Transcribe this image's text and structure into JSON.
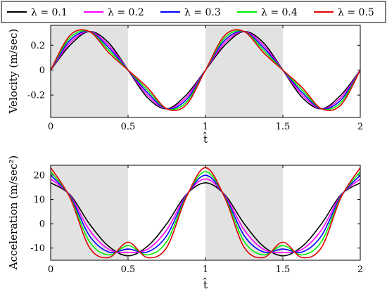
{
  "chart_data": [
    {
      "type": "line",
      "ylabel": "Velocity  (m/sec)",
      "xlabel": "t̂",
      "xlim": [
        0,
        2
      ],
      "ylim": [
        -0.38,
        0.36
      ],
      "xticks": [
        0,
        0.5,
        1,
        1.5,
        2
      ],
      "xtick_labels": [
        "0",
        "0.5",
        "1",
        "1.5",
        "2"
      ],
      "yticks": [
        -0.2,
        0,
        0.2
      ],
      "ytick_labels": [
        "-0.2",
        "0",
        "0.2"
      ],
      "shaded_regions": [
        [
          0,
          0.5
        ],
        [
          1,
          1.5
        ]
      ],
      "grid": false,
      "series": [
        {
          "name": "λ = 0.1",
          "color": "#000000",
          "x": [
            0,
            0.125,
            0.25,
            0.375,
            0.5,
            0.625,
            0.75,
            0.875,
            1,
            1.125,
            1.25,
            1.375,
            1.5,
            1.625,
            1.75,
            1.875,
            2
          ],
          "y": [
            0,
            0.2,
            0.31,
            0.22,
            0,
            -0.22,
            -0.31,
            -0.2,
            0,
            0.2,
            0.31,
            0.22,
            0,
            -0.22,
            -0.31,
            -0.2,
            0
          ]
        },
        {
          "name": "λ = 0.2",
          "color": "#ff00ff",
          "x": [
            0,
            0.125,
            0.25,
            0.375,
            0.5,
            0.625,
            0.75,
            0.875,
            1,
            1.125,
            1.25,
            1.375,
            1.5,
            1.625,
            1.75,
            1.875,
            2
          ],
          "y": [
            0,
            0.22,
            0.31,
            0.2,
            0,
            -0.2,
            -0.31,
            -0.22,
            0,
            0.22,
            0.31,
            0.2,
            0,
            -0.2,
            -0.31,
            -0.22,
            0
          ]
        },
        {
          "name": "λ = 0.3",
          "color": "#0000ff",
          "x": [
            0,
            0.125,
            0.25,
            0.375,
            0.5,
            0.625,
            0.75,
            0.875,
            1,
            1.125,
            1.25,
            1.375,
            1.5,
            1.625,
            1.75,
            1.875,
            2
          ],
          "y": [
            0,
            0.24,
            0.31,
            0.18,
            0,
            -0.18,
            -0.31,
            -0.24,
            0,
            0.24,
            0.31,
            0.18,
            0,
            -0.18,
            -0.31,
            -0.24,
            0
          ]
        },
        {
          "name": "λ = 0.4",
          "color": "#00ee00",
          "x": [
            0,
            0.125,
            0.25,
            0.375,
            0.5,
            0.625,
            0.75,
            0.875,
            1,
            1.125,
            1.25,
            1.375,
            1.5,
            1.625,
            1.75,
            1.875,
            2
          ],
          "y": [
            0,
            0.26,
            0.31,
            0.16,
            0,
            -0.16,
            -0.31,
            -0.26,
            0,
            0.26,
            0.31,
            0.16,
            0,
            -0.16,
            -0.31,
            -0.26,
            0
          ]
        },
        {
          "name": "λ = 0.5",
          "color": "#dd0000",
          "x": [
            0,
            0.125,
            0.25,
            0.375,
            0.5,
            0.625,
            0.75,
            0.875,
            1,
            1.125,
            1.25,
            1.375,
            1.5,
            1.625,
            1.75,
            1.875,
            2
          ],
          "y": [
            0,
            0.28,
            0.31,
            0.14,
            0,
            -0.14,
            -0.31,
            -0.28,
            0,
            0.28,
            0.31,
            0.14,
            0,
            -0.14,
            -0.31,
            -0.28,
            0
          ]
        }
      ]
    },
    {
      "type": "line",
      "ylabel": "Acceleration  (m/sec²)",
      "xlabel": "t̂",
      "xlim": [
        0,
        2
      ],
      "ylim": [
        -15,
        24
      ],
      "xticks": [
        0,
        0.5,
        1,
        1.5,
        2
      ],
      "xtick_labels": [
        "0",
        "0.5",
        "1",
        "1.5",
        "2"
      ],
      "yticks": [
        -10,
        0,
        10,
        20
      ],
      "ytick_labels": [
        "-10",
        "0",
        "10",
        "20"
      ],
      "shaded_regions": [
        [
          0,
          0.5
        ],
        [
          1,
          1.5
        ]
      ],
      "grid": false,
      "series": [
        {
          "name": "λ = 0.1",
          "color": "#000000",
          "x": [
            0,
            0.125,
            0.25,
            0.375,
            0.5,
            0.625,
            0.75,
            0.875,
            1,
            1.125,
            1.25,
            1.375,
            1.5,
            1.625,
            1.75,
            1.875,
            2
          ],
          "y": [
            16.8,
            11.9,
            0,
            -9.3,
            -13.2,
            -9.3,
            0,
            11.9,
            16.8,
            11.9,
            0,
            -9.3,
            -13.2,
            -9.3,
            0,
            11.9,
            16.8
          ]
        },
        {
          "name": "λ = 0.2",
          "color": "#ff00ff",
          "x": [
            0,
            0.125,
            0.25,
            0.375,
            0.5,
            0.625,
            0.75,
            0.875,
            1,
            1.125,
            1.25,
            1.375,
            1.5,
            1.625,
            1.75,
            1.875,
            2
          ],
          "y": [
            18.4,
            11.6,
            -2.5,
            -10.5,
            -11.8,
            -10.5,
            -2.5,
            11.6,
            18.4,
            11.6,
            -2.5,
            -10.5,
            -11.8,
            -10.5,
            -2.5,
            11.6,
            18.4
          ]
        },
        {
          "name": "λ = 0.3",
          "color": "#0000ff",
          "x": [
            0,
            0.125,
            0.25,
            0.375,
            0.5,
            0.625,
            0.75,
            0.875,
            1,
            1.125,
            1.25,
            1.375,
            1.5,
            1.625,
            1.75,
            1.875,
            2
          ],
          "y": [
            19.9,
            11.3,
            -4.9,
            -11.6,
            -10.4,
            -11.6,
            -4.9,
            11.3,
            19.9,
            11.3,
            -4.9,
            -11.6,
            -10.4,
            -11.6,
            -4.9,
            11.3,
            19.9
          ]
        },
        {
          "name": "λ = 0.4",
          "color": "#00ee00",
          "x": [
            0,
            0.125,
            0.25,
            0.375,
            0.5,
            0.625,
            0.75,
            0.875,
            1,
            1.125,
            1.25,
            1.375,
            1.5,
            1.625,
            1.75,
            1.875,
            2
          ],
          "y": [
            21.4,
            11.0,
            -7.3,
            -12.8,
            -9.0,
            -12.8,
            -7.3,
            11.0,
            21.4,
            11.0,
            -7.3,
            -12.8,
            -9.0,
            -12.8,
            -7.3,
            11.0,
            21.4
          ]
        },
        {
          "name": "λ = 0.5",
          "color": "#dd0000",
          "x": [
            0,
            0.125,
            0.25,
            0.375,
            0.5,
            0.625,
            0.75,
            0.875,
            1,
            1.125,
            1.25,
            1.375,
            1.5,
            1.625,
            1.75,
            1.875,
            2
          ],
          "y": [
            23.0,
            10.7,
            -9.7,
            -13.9,
            -7.6,
            -13.9,
            -9.7,
            10.7,
            23.0,
            10.7,
            -9.7,
            -13.9,
            -7.6,
            -13.9,
            -9.7,
            10.7,
            23.0
          ]
        }
      ]
    }
  ],
  "legend": {
    "placement": "top",
    "entries": [
      {
        "label": "λ = 0.1",
        "color": "#000000"
      },
      {
        "label": "λ = 0.2",
        "color": "#ff00ff"
      },
      {
        "label": "λ = 0.3",
        "color": "#0000ff"
      },
      {
        "label": "λ = 0.4",
        "color": "#00ee00"
      },
      {
        "label": "λ = 0.5",
        "color": "#dd0000"
      }
    ]
  },
  "colors": {
    "shade": "#e2e2e2",
    "axis": "#000000"
  }
}
